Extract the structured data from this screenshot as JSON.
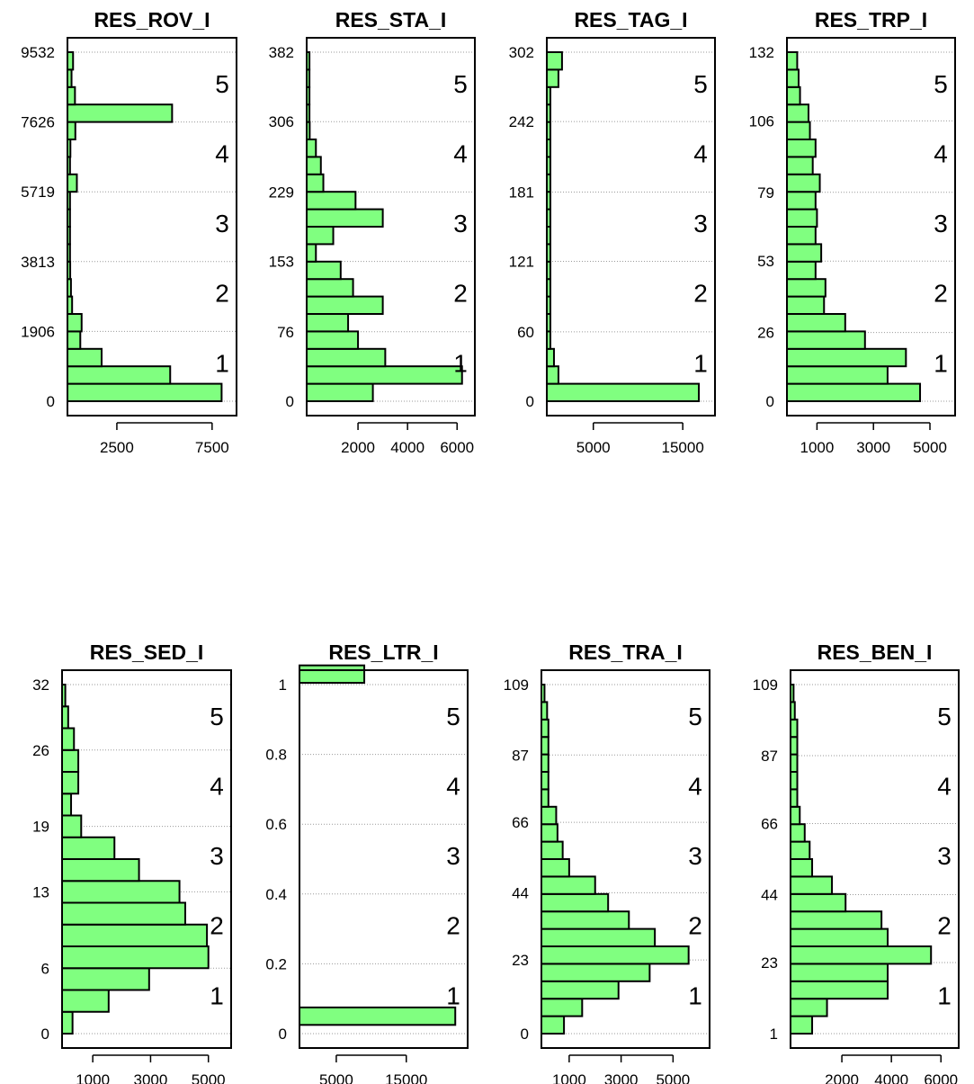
{
  "chart_data": [
    {
      "type": "bar",
      "orientation": "horizontal",
      "title": "RES_ROV_I",
      "ylim": [
        0,
        9532
      ],
      "yticks": [
        0,
        1906,
        3813,
        5719,
        7626,
        9532
      ],
      "ytick_labels": [
        "0",
        "1906",
        "3813",
        "5719",
        "7626",
        "9532"
      ],
      "xlim": [
        0,
        8500
      ],
      "xticks": [
        2500,
        7500
      ],
      "xtick_labels": [
        "2500",
        "7500"
      ],
      "bins": 20,
      "bin_width": 476.6,
      "values": [
        8000,
        5300,
        1700,
        580,
        650,
        150,
        90,
        50,
        40,
        40,
        40,
        40,
        400,
        40,
        60,
        320,
        5400,
        300,
        120,
        200
      ],
      "quintile_labels": [
        "1",
        "2",
        "3",
        "4",
        "5"
      ]
    },
    {
      "type": "bar",
      "orientation": "horizontal",
      "title": "RES_STA_I",
      "ylim": [
        0,
        382
      ],
      "yticks": [
        0,
        76,
        153,
        229,
        306,
        382
      ],
      "ytick_labels": [
        "0",
        "76",
        "153",
        "229",
        "306",
        "382"
      ],
      "xlim": [
        0,
        6500
      ],
      "xticks": [
        2000,
        4000,
        6000
      ],
      "xtick_labels": [
        "2000",
        "4000",
        "6000"
      ],
      "bins": 20,
      "bin_width": 19.1,
      "values": [
        2600,
        6200,
        3100,
        2000,
        1600,
        3000,
        1800,
        1300,
        300,
        1000,
        3000,
        1900,
        600,
        500,
        300,
        50,
        40,
        40,
        40,
        40
      ],
      "quintile_labels": [
        "1",
        "2",
        "3",
        "4",
        "5"
      ]
    },
    {
      "type": "bar",
      "orientation": "horizontal",
      "title": "RES_TAG_I",
      "ylim": [
        0,
        302
      ],
      "yticks": [
        0,
        60,
        121,
        181,
        242,
        302
      ],
      "ytick_labels": [
        "0",
        "60",
        "121",
        "181",
        "242",
        "302"
      ],
      "xlim": [
        0,
        18000
      ],
      "xticks": [
        5000,
        15000
      ],
      "xtick_labels": [
        "5000",
        "15000"
      ],
      "bins": 20,
      "bin_width": 15.1,
      "values": [
        16800,
        1100,
        600,
        200,
        200,
        200,
        200,
        200,
        200,
        200,
        200,
        200,
        200,
        200,
        200,
        200,
        200,
        200,
        1100,
        1500
      ],
      "quintile_labels": [
        "1",
        "2",
        "3",
        "4",
        "5"
      ]
    },
    {
      "type": "bar",
      "orientation": "horizontal",
      "title": "RES_TRP_I",
      "ylim": [
        0,
        132
      ],
      "yticks": [
        0,
        26,
        53,
        79,
        106,
        132
      ],
      "ytick_labels": [
        "0",
        "26",
        "53",
        "79",
        "106",
        "132"
      ],
      "xlim": [
        0,
        5700
      ],
      "xticks": [
        1000,
        3000,
        5000
      ],
      "xtick_labels": [
        "1000",
        "3000",
        "5000"
      ],
      "bins": 20,
      "bin_width": 6.6,
      "values": [
        4650,
        3500,
        4150,
        2700,
        2000,
        1250,
        1300,
        950,
        1150,
        950,
        1000,
        950,
        1100,
        850,
        950,
        750,
        700,
        400,
        350,
        300
      ],
      "quintile_labels": [
        "1",
        "2",
        "3",
        "4",
        "5"
      ]
    },
    {
      "type": "bar",
      "orientation": "horizontal",
      "title": "RES_SED_I",
      "ylim": [
        0,
        32
      ],
      "yticks": [
        0,
        6,
        13,
        19,
        26,
        32
      ],
      "ytick_labels": [
        "0",
        "6",
        "13",
        "19",
        "26",
        "32"
      ],
      "xlim": [
        0,
        5600
      ],
      "xticks": [
        1000,
        3000,
        5000
      ],
      "xtick_labels": [
        "1000",
        "3000",
        "5000"
      ],
      "bins": 16,
      "bin_width": 2,
      "values": [
        300,
        1550,
        2950,
        5000,
        4950,
        4200,
        4000,
        2600,
        1750,
        600,
        250,
        500,
        500,
        350,
        150,
        50
      ],
      "quintile_labels": [
        "1",
        "2",
        "3",
        "4",
        "5"
      ]
    },
    {
      "type": "bar",
      "orientation": "horizontal",
      "title": "RES_LTR_I",
      "ylim": [
        0,
        1
      ],
      "yticks": [
        0,
        0.2,
        0.4,
        0.6,
        0.8,
        1
      ],
      "ytick_labels": [
        "0",
        "0.2",
        "0.4",
        "0.6",
        "0.8",
        "1"
      ],
      "xlim": [
        0,
        23000
      ],
      "xticks": [
        5000,
        15000
      ],
      "xtick_labels": [
        "5000",
        "15000"
      ],
      "bins": 2,
      "bin_positions": [
        0.05,
        1.03
      ],
      "values": [
        22000,
        9000
      ],
      "quintile_labels": [
        "1",
        "2",
        "3",
        "4",
        "5"
      ]
    },
    {
      "type": "bar",
      "orientation": "horizontal",
      "title": "RES_TRA_I",
      "ylim": [
        0,
        109
      ],
      "yticks": [
        0,
        23,
        44,
        66,
        87,
        109
      ],
      "ytick_labels": [
        "0",
        "23",
        "44",
        "66",
        "87",
        "109"
      ],
      "xlim": [
        0,
        6200
      ],
      "xticks": [
        1000,
        3000,
        5000
      ],
      "xtick_labels": [
        "1000",
        "3000",
        "5000"
      ],
      "bins": 20,
      "bin_width": 5.5,
      "values": [
        800,
        1500,
        2900,
        4100,
        5600,
        4300,
        3300,
        2500,
        2000,
        1000,
        750,
        550,
        500,
        200,
        200,
        200,
        200,
        200,
        150,
        50
      ],
      "quintile_labels": [
        "1",
        "2",
        "3",
        "4",
        "5"
      ]
    },
    {
      "type": "bar",
      "orientation": "horizontal",
      "title": "RES_BEN_I",
      "ylim": [
        1,
        109
      ],
      "yticks": [
        1,
        23,
        44,
        66,
        87,
        109
      ],
      "ytick_labels": [
        "1",
        "23",
        "44",
        "66",
        "87",
        "109"
      ],
      "xlim": [
        0,
        6500
      ],
      "xticks": [
        2000,
        4000,
        6000
      ],
      "xtick_labels": [
        "2000",
        "4000",
        "6000"
      ],
      "bins": 20,
      "bin_width": 5.4,
      "values": [
        800,
        1400,
        3850,
        3850,
        5600,
        3850,
        3600,
        2150,
        1600,
        800,
        700,
        500,
        300,
        200,
        200,
        200,
        200,
        200,
        100,
        50
      ],
      "quintile_labels": [
        "1",
        "2",
        "3",
        "4",
        "5"
      ]
    }
  ]
}
